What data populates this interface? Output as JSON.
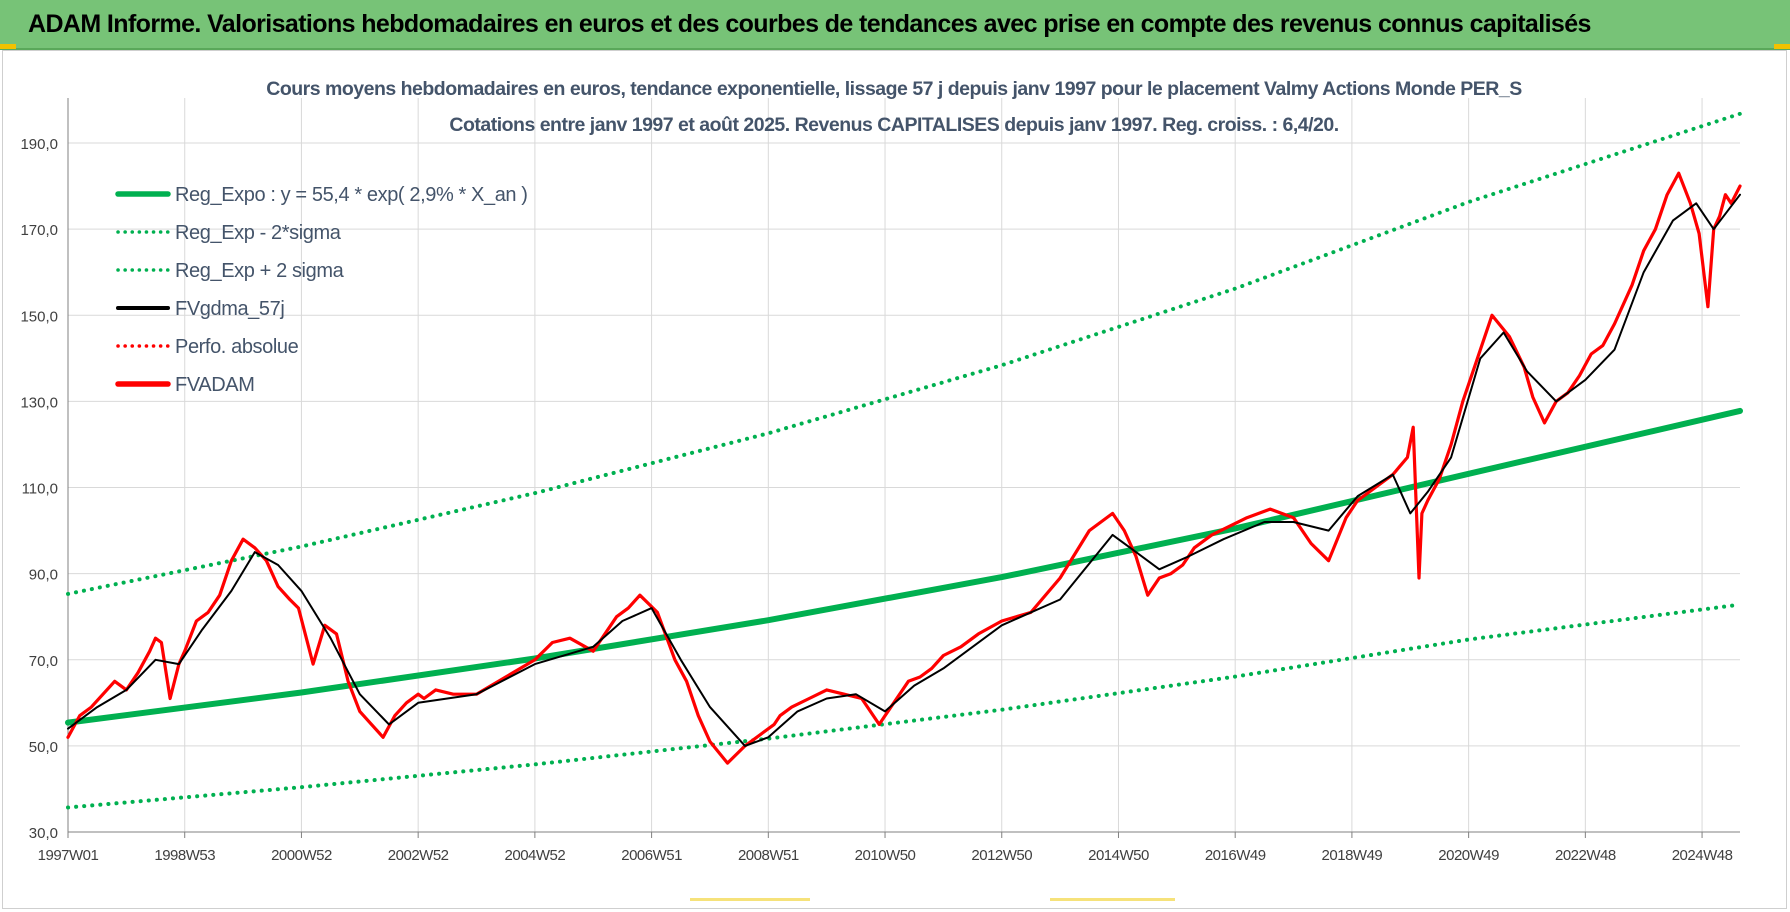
{
  "banner": {
    "title": "ADAM Informe. Valorisations hebdomadaires en euros et des courbes de tendances avec prise en compte des revenus connus capitalisés"
  },
  "colors": {
    "banner_bg": "#77c377",
    "trend_green": "#00b050",
    "moving_avg": "#000000",
    "price_red": "#ff0000",
    "text_dark": "#44546a",
    "grid": "#d9d9d9"
  },
  "chart_data": {
    "type": "line",
    "title": "Cours moyens hebdomadaires en euros, tendance exponentielle, lissage 57 j depuis janv 1997 pour le placement Valmy Actions Monde PER_S",
    "subtitle": "Cotations entre janv 1997 et août 2025.  Revenus CAPITALISES depuis janv 1997. Reg. croiss. : 6,4/20.",
    "xlabel": "",
    "ylabel": "",
    "x_ticks": [
      "1997W01",
      "1998W53",
      "2000W52",
      "2002W52",
      "2004W52",
      "2006W51",
      "2008W51",
      "2010W50",
      "2012W50",
      "2014W50",
      "2016W49",
      "2018W49",
      "2020W49",
      "2022W48",
      "2024W48"
    ],
    "x_tick_years": [
      1997.0,
      1999.0,
      2001.0,
      2003.0,
      2005.0,
      2007.0,
      2009.0,
      2011.0,
      2013.0,
      2015.0,
      2017.0,
      2019.0,
      2021.0,
      2023.0,
      2025.0
    ],
    "x_range": [
      1997.0,
      2025.65
    ],
    "y_ticks": [
      "30,0",
      "50,0",
      "70,0",
      "90,0",
      "110,0",
      "130,0",
      "150,0",
      "170,0",
      "190,0"
    ],
    "y_tick_values": [
      30,
      50,
      70,
      90,
      110,
      130,
      150,
      170,
      190
    ],
    "ylim": [
      30,
      200
    ],
    "grid": true,
    "legend_position": "top-left",
    "legend": [
      {
        "label": "Reg_Expo : y = 55,4 * exp( 2,9% *  X_an )",
        "color": "#00b050",
        "style": "solid-thick"
      },
      {
        "label": "Reg_Exp - 2*sigma",
        "color": "#00b050",
        "style": "dotted"
      },
      {
        "label": "Reg_Exp + 2 sigma",
        "color": "#00b050",
        "style": "dotted"
      },
      {
        "label": "FVgdma_57j",
        "color": "#000000",
        "style": "solid"
      },
      {
        "label": "Perfo. absolue",
        "color": "#ff0000",
        "style": "dotted"
      },
      {
        "label": "FVADAM",
        "color": "#ff0000",
        "style": "solid-thick"
      }
    ],
    "series": [
      {
        "name": "Reg_Expo : y = 55,4 * exp( 2,9% *  X_an )",
        "x": [
          1997.0,
          2001.0,
          2005.0,
          2009.0,
          2013.0,
          2017.0,
          2021.0,
          2025.65
        ],
        "values": [
          55.4,
          62.4,
          70.3,
          79.2,
          89.2,
          100.5,
          113.2,
          127.8
        ]
      },
      {
        "name": "Reg_Exp - 2*sigma",
        "x": [
          1997.0,
          2001.0,
          2005.0,
          2009.0,
          2013.0,
          2017.0,
          2021.0,
          2025.65
        ],
        "values": [
          35.7,
          40.4,
          45.7,
          51.7,
          58.4,
          66.1,
          74.7,
          82.8
        ]
      },
      {
        "name": "Reg_Exp + 2 sigma",
        "x": [
          1997.0,
          2001.0,
          2005.0,
          2009.0,
          2013.0,
          2017.0,
          2021.0,
          2025.65
        ],
        "values": [
          85.3,
          96.3,
          108.7,
          122.6,
          138.4,
          156.2,
          176.3,
          196.8
        ]
      },
      {
        "name": "FVADAM",
        "x": [
          1997.0,
          1997.2,
          1997.4,
          1997.6,
          1997.8,
          1998.0,
          1998.2,
          1998.4,
          1998.5,
          1998.6,
          1998.75,
          1998.9,
          1999.0,
          1999.2,
          1999.4,
          1999.6,
          1999.8,
          2000.0,
          2000.2,
          2000.4,
          2000.6,
          2000.8,
          2000.95,
          2001.2,
          2001.4,
          2001.6,
          2001.8,
          2002.0,
          2002.2,
          2002.4,
          2002.6,
          2002.8,
          2003.0,
          2003.1,
          2003.3,
          2003.6,
          2004.0,
          2004.5,
          2005.0,
          2005.3,
          2005.6,
          2006.0,
          2006.4,
          2006.6,
          2006.8,
          2007.1,
          2007.4,
          2007.6,
          2007.8,
          2008.0,
          2008.3,
          2008.6,
          2008.9,
          2009.1,
          2009.2,
          2009.4,
          2009.7,
          2010.0,
          2010.3,
          2010.6,
          2010.9,
          2011.2,
          2011.4,
          2011.6,
          2011.8,
          2012.0,
          2012.3,
          2012.6,
          2013.0,
          2013.5,
          2014.0,
          2014.5,
          2014.9,
          2015.1,
          2015.3,
          2015.5,
          2015.7,
          2015.9,
          2016.1,
          2016.3,
          2016.6,
          2016.9,
          2017.2,
          2017.6,
          2018.0,
          2018.3,
          2018.6,
          2018.9,
          2019.1,
          2019.4,
          2019.7,
          2019.95,
          2020.05,
          2020.15,
          2020.2,
          2020.3,
          2020.5,
          2020.7,
          2020.9,
          2021.1,
          2021.4,
          2021.7,
          2021.95,
          2022.1,
          2022.3,
          2022.5,
          2022.7,
          2022.9,
          2023.1,
          2023.3,
          2023.5,
          2023.8,
          2024.0,
          2024.2,
          2024.4,
          2024.6,
          2024.8,
          2024.95,
          2025.1,
          2025.2,
          2025.3,
          2025.4,
          2025.5,
          2025.65
        ],
        "values": [
          52.0,
          57.0,
          59.0,
          62.0,
          65.0,
          63.0,
          67.0,
          72.0,
          75.0,
          74.0,
          61.0,
          69.0,
          72.0,
          79.0,
          81.0,
          85.0,
          93.0,
          98.0,
          96.0,
          93.0,
          87.0,
          84.0,
          82.0,
          69.0,
          78.0,
          76.0,
          65.0,
          58.0,
          55.0,
          52.0,
          57.0,
          60.0,
          62.0,
          61.0,
          63.0,
          62.0,
          62.0,
          66.0,
          70.0,
          74.0,
          75.0,
          72.0,
          80.0,
          82.0,
          85.0,
          81.0,
          70.0,
          65.0,
          57.0,
          51.0,
          46.0,
          50.0,
          53.0,
          55.0,
          57.0,
          59.0,
          61.0,
          63.0,
          62.0,
          61.0,
          55.0,
          61.0,
          65.0,
          66.0,
          68.0,
          71.0,
          73.0,
          76.0,
          79.0,
          81.0,
          89.0,
          100.0,
          104.0,
          100.0,
          94.0,
          85.0,
          89.0,
          90.0,
          92.0,
          96.0,
          99.0,
          101.0,
          103.0,
          105.0,
          103.0,
          97.0,
          93.0,
          103.0,
          107.0,
          110.0,
          113.0,
          117.0,
          124.0,
          89.0,
          104.0,
          107.0,
          112.0,
          120.0,
          130.0,
          138.0,
          150.0,
          145.0,
          138.0,
          131.0,
          125.0,
          130.0,
          132.0,
          136.0,
          141.0,
          143.0,
          148.0,
          157.0,
          165.0,
          170.0,
          178.0,
          183.0,
          176.0,
          169.0,
          152.0,
          170.0,
          173.0,
          178.0,
          176.0,
          180.0
        ]
      },
      {
        "name": "FVgdma_57j",
        "x": [
          1997.0,
          1997.5,
          1998.0,
          1998.5,
          1998.9,
          1999.3,
          1999.8,
          2000.2,
          2000.6,
          2001.0,
          2001.5,
          2002.0,
          2002.5,
          2003.0,
          2004.0,
          2005.0,
          2006.0,
          2006.5,
          2007.0,
          2007.5,
          2008.0,
          2008.6,
          2009.0,
          2009.5,
          2010.0,
          2010.5,
          2011.0,
          2011.5,
          2012.0,
          2013.0,
          2014.0,
          2014.9,
          2015.3,
          2015.7,
          2016.2,
          2016.8,
          2017.5,
          2018.0,
          2018.6,
          2019.1,
          2019.7,
          2020.0,
          2020.3,
          2020.7,
          2021.2,
          2021.6,
          2022.0,
          2022.5,
          2023.0,
          2023.5,
          2024.0,
          2024.5,
          2024.9,
          2025.2,
          2025.65
        ],
        "values": [
          54.0,
          59.0,
          63.0,
          70.0,
          69.0,
          77.0,
          86.0,
          95.0,
          92.0,
          86.0,
          75.0,
          62.0,
          55.0,
          60.0,
          62.0,
          69.0,
          73.0,
          79.0,
          82.0,
          70.0,
          59.0,
          50.0,
          52.0,
          58.0,
          61.0,
          62.0,
          58.0,
          64.0,
          68.0,
          78.0,
          84.0,
          99.0,
          95.0,
          91.0,
          94.0,
          98.0,
          102.0,
          102.0,
          100.0,
          108.0,
          113.0,
          104.0,
          109.0,
          117.0,
          140.0,
          146.0,
          137.0,
          130.0,
          135.0,
          142.0,
          160.0,
          172.0,
          176.0,
          170.0,
          178.0
        ]
      }
    ]
  }
}
